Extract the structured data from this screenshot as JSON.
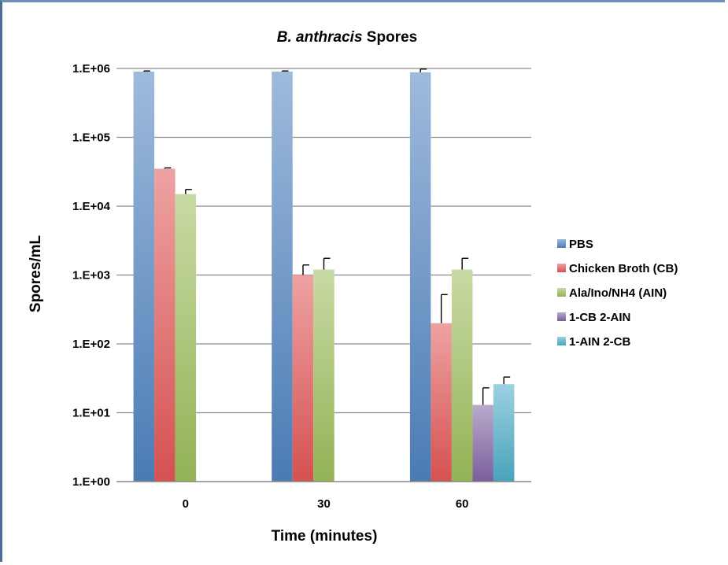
{
  "chart_data": {
    "type": "bar",
    "title_prefix": "B. anthracis",
    "title_suffix": " Spores",
    "xlabel": "Time (minutes)",
    "ylabel": "Spores/mL",
    "y_scale": "log10",
    "ylim": [
      1,
      1000000
    ],
    "y_ticks": [
      {
        "value": 1,
        "label": "1.E+00"
      },
      {
        "value": 10,
        "label": "1.E+01"
      },
      {
        "value": 100,
        "label": "1.E+02"
      },
      {
        "value": 1000,
        "label": "1.E+03"
      },
      {
        "value": 10000,
        "label": "1.E+04"
      },
      {
        "value": 100000,
        "label": "1.E+05"
      },
      {
        "value": 1000000,
        "label": "1.E+06"
      }
    ],
    "grid": true,
    "legend_position": "right",
    "categories": [
      "0",
      "30",
      "60"
    ],
    "series": [
      {
        "name": "PBS",
        "color": "#4f81bd",
        "values": [
          900000,
          900000,
          880000
        ],
        "errors": [
          20000,
          20000,
          100000
        ]
      },
      {
        "name": "Chicken Broth (CB)",
        "color": "#e05555",
        "values": [
          35000,
          1000,
          200
        ],
        "errors": [
          1000,
          400,
          320
        ]
      },
      {
        "name": "Ala/Ino/NH4 (AIN)",
        "color": "#9bbb59",
        "values": [
          15000,
          1200,
          1200
        ],
        "errors": [
          2500,
          550,
          550
        ]
      },
      {
        "name": "1-CB 2-AIN",
        "color": "#8064a2",
        "values": [
          null,
          null,
          13
        ],
        "errors": [
          null,
          null,
          10
        ]
      },
      {
        "name": "1-AIN 2-CB",
        "color": "#4bacc6",
        "values": [
          null,
          null,
          26
        ],
        "errors": [
          null,
          null,
          7
        ]
      }
    ]
  }
}
